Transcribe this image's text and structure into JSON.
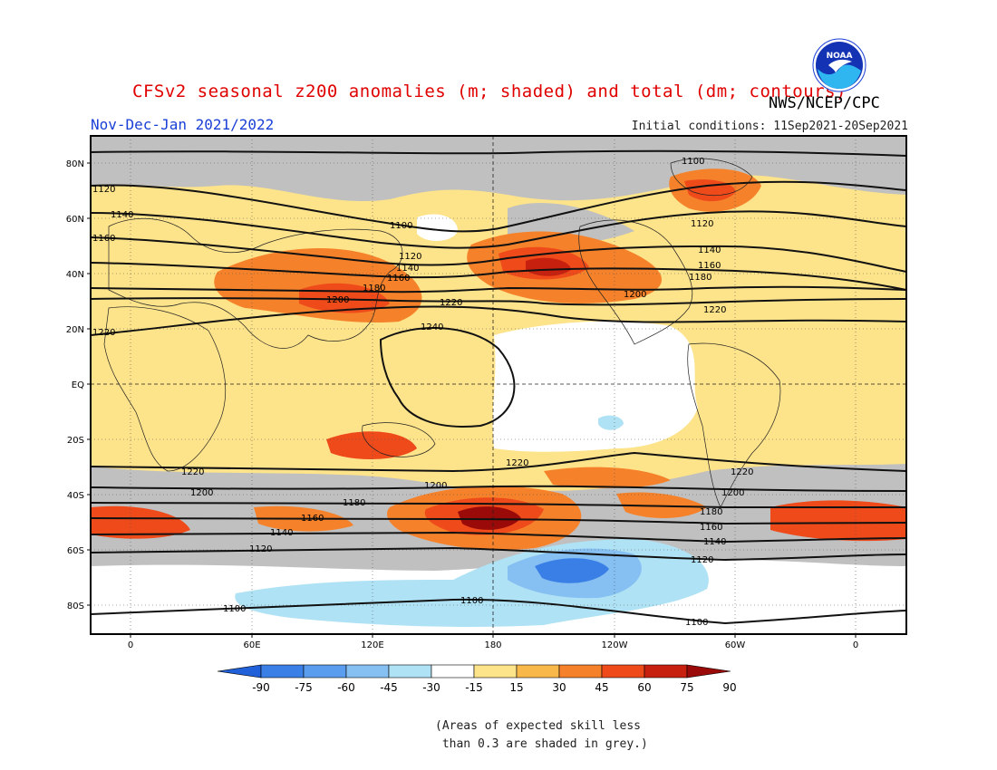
{
  "title": "CFSv2 seasonal z200 anomalies (m; shaded) and total (dm; contours)",
  "agency": "NWS/NCEP/CPC",
  "logo_text": "NOAA",
  "period": "Nov-Dec-Jan 2021/2022",
  "initial_conditions": "Initial conditions: 11Sep2021-20Sep2021",
  "note_line1": "(Areas of expected skill less",
  "note_line2": " than 0.3 are shaded in grey.)",
  "lat_labels": [
    "80N",
    "60N",
    "40N",
    "20N",
    "EQ",
    "20S",
    "40S",
    "60S",
    "80S"
  ],
  "lon_labels": [
    "0",
    "60E",
    "120E",
    "180",
    "120W",
    "60W",
    "0"
  ],
  "colorbar": {
    "ticks": [
      "-90",
      "-75",
      "-60",
      "-45",
      "-30",
      "-15",
      "15",
      "30",
      "45",
      "60",
      "75",
      "90"
    ],
    "colors": [
      "#2060d8",
      "#3a7fe6",
      "#5a9cee",
      "#86bff2",
      "#b0e2f5",
      "#ffffff",
      "#fde38a",
      "#f9b84a",
      "#f5822a",
      "#ee4a1a",
      "#c8200e",
      "#9a0a08"
    ]
  },
  "colors": {
    "skill_grey": "#c0c0c0",
    "ocean_bg": "#fde38a"
  },
  "contour_labels": [
    "1100",
    "1120",
    "1140",
    "1160",
    "1180",
    "1200",
    "1220",
    "1240"
  ]
}
